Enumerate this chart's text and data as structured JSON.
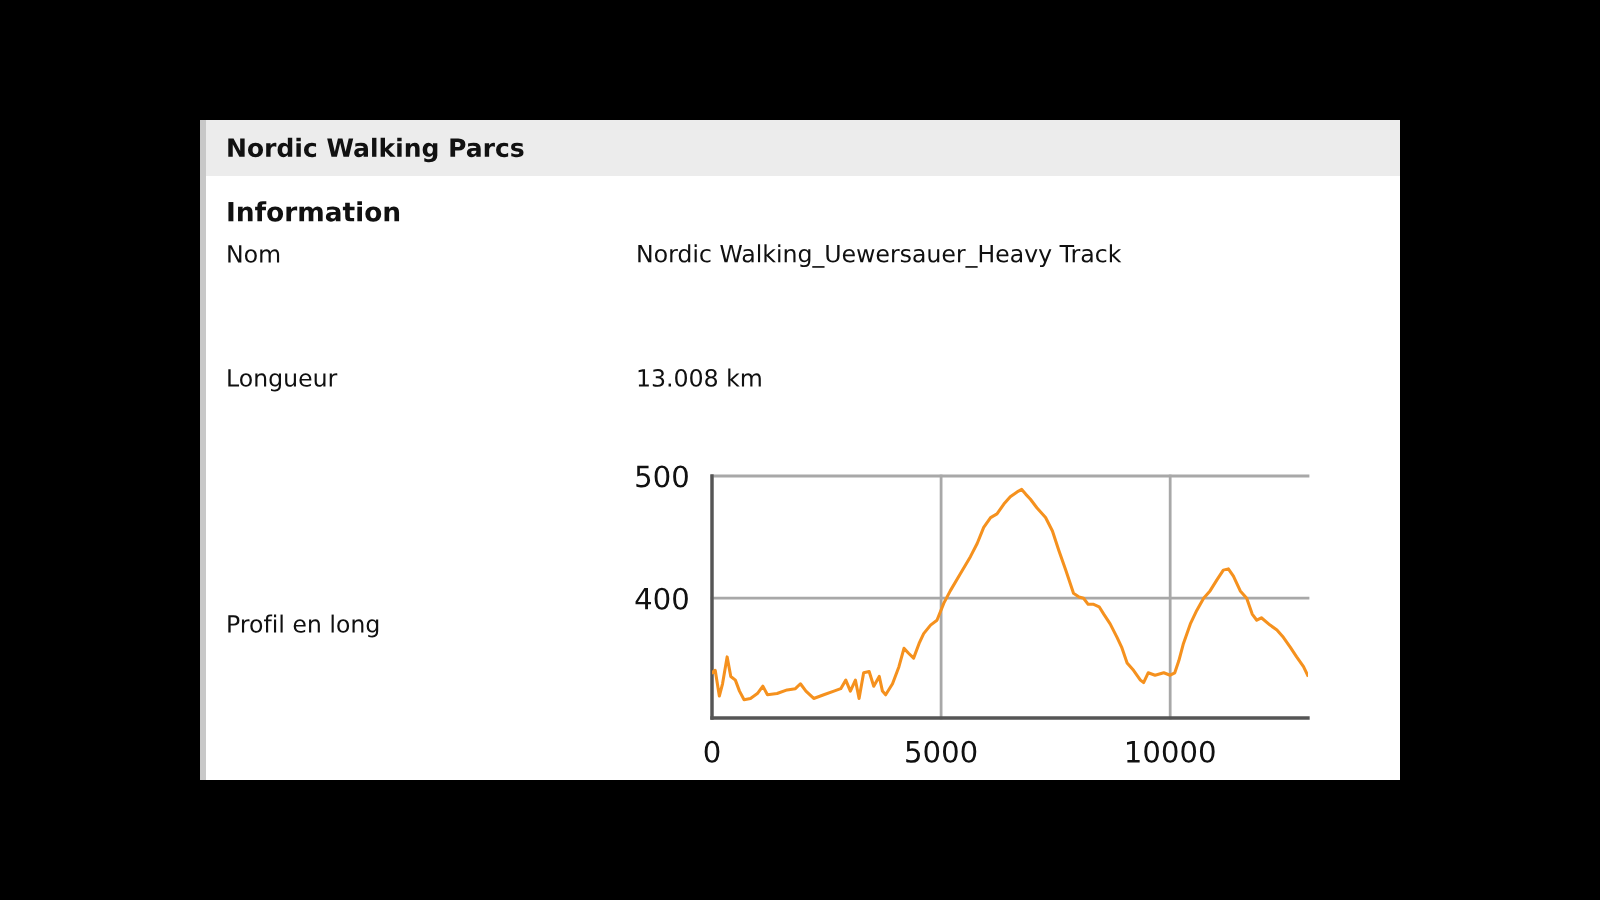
{
  "chart_data": {
    "type": "line",
    "title": "Nordic Walking Parcs",
    "annotations": [
      "Information",
      "Nom",
      "Nordic Walking_Uewersauer_Heavy Track",
      "Longueur",
      "13.008 km",
      "Profil en long"
    ],
    "series": [
      {
        "color": "#f5911e",
        "x": [
          0,
          70,
          160,
          230,
          330,
          410,
          510,
          600,
          700,
          840,
          990,
          1110,
          1210,
          1420,
          1640,
          1820,
          1930,
          2050,
          2220,
          2440,
          2660,
          2810,
          2920,
          3020,
          3130,
          3210,
          3310,
          3430,
          3530,
          3650,
          3720,
          3790,
          3940,
          4080,
          4190,
          4290,
          4400,
          4520,
          4620,
          4770,
          4910,
          5060,
          5200,
          5420,
          5640,
          5790,
          5930,
          6080,
          6220,
          6370,
          6510,
          6660,
          6760,
          6850,
          6950,
          7090,
          7280,
          7430,
          7570,
          7720,
          7890,
          8010,
          8110,
          8210,
          8330,
          8450,
          8550,
          8690,
          8840,
          8940,
          9060,
          9200,
          9350,
          9420,
          9520,
          9670,
          9860,
          10000,
          10100,
          10190,
          10290,
          10440,
          10580,
          10730,
          10870,
          11020,
          11160,
          11270,
          11380,
          11530,
          11670,
          11790,
          11890,
          11990,
          12180,
          12330,
          12470,
          12620,
          12760,
          12910,
          13000
        ],
        "values": [
          339,
          341,
          320,
          330,
          352,
          336,
          333,
          324,
          317,
          318,
          322,
          328,
          321,
          322,
          325,
          326,
          330,
          324,
          318,
          321,
          324,
          326,
          333,
          324,
          333,
          318,
          339,
          340,
          328,
          336,
          324,
          321,
          330,
          344,
          359,
          355,
          351,
          363,
          371,
          378,
          382,
          396,
          406,
          420,
          434,
          445,
          458,
          466,
          469,
          477,
          483,
          487,
          489,
          485,
          481,
          474,
          466,
          455,
          439,
          423,
          404,
          401,
          400,
          395,
          395,
          393,
          387,
          379,
          368,
          360,
          347,
          341,
          333,
          331,
          339,
          337,
          339,
          337,
          339,
          349,
          363,
          379,
          390,
          400,
          406,
          415,
          423,
          424,
          418,
          406,
          400,
          387,
          382,
          384,
          378,
          374,
          368,
          360,
          352,
          344,
          337
        ]
      }
    ],
    "xlim": [
      0,
      13008
    ],
    "ylim": [
      302,
      500
    ],
    "xticks": [
      0,
      5000,
      10000
    ],
    "yticks": [
      400,
      500
    ],
    "grid": true
  }
}
